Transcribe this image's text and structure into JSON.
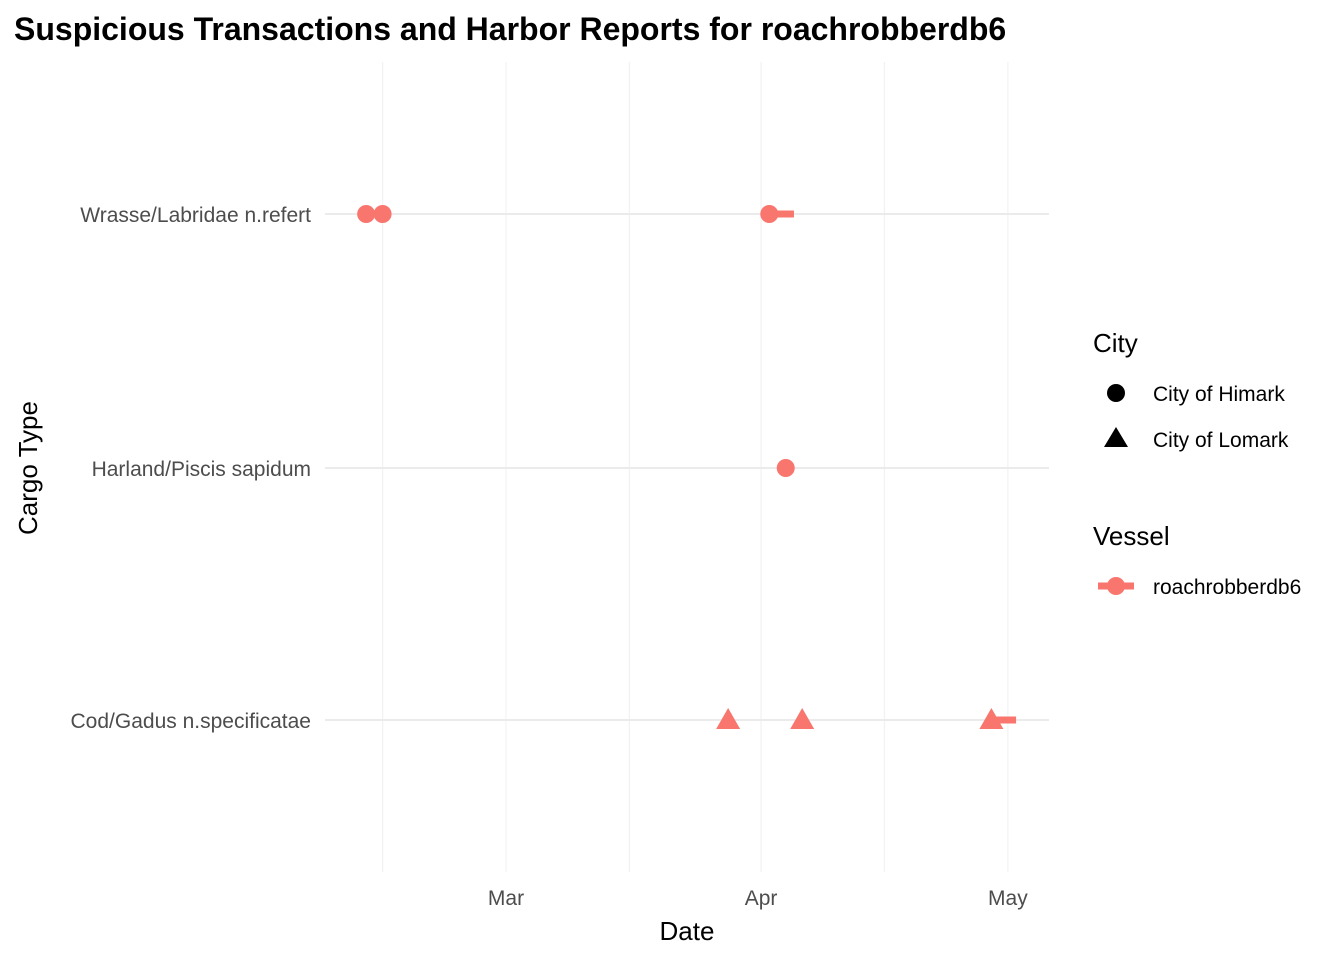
{
  "chart_data": {
    "type": "scatter",
    "title": "Suspicious Transactions and Harbor Reports for roachrobberdb6",
    "xlabel": "Date",
    "ylabel": "Cargo Type",
    "x_axis": {
      "type": "date",
      "range": [
        "2035-02-07",
        "2035-05-06"
      ],
      "ticks": [
        {
          "date": "2035-03-01",
          "label": "Mar"
        },
        {
          "date": "2035-04-01",
          "label": "Apr"
        },
        {
          "date": "2035-05-01",
          "label": "May"
        }
      ],
      "minor_gridlines": [
        "2035-02-14",
        "2035-03-16",
        "2035-04-16"
      ]
    },
    "categories": [
      "Cod/Gadus n.specificatae",
      "Harland/Piscis sapidum",
      "Wrasse/Labridae n.refert"
    ],
    "grid": true,
    "points": [
      {
        "date": "2035-02-12",
        "category": "Wrasse/Labridae n.refert",
        "city": "City of Himark",
        "vessel": "roachrobberdb6"
      },
      {
        "date": "2035-02-14",
        "category": "Wrasse/Labridae n.refert",
        "city": "City of Himark",
        "vessel": "roachrobberdb6"
      },
      {
        "date": "2035-04-02",
        "category": "Wrasse/Labridae n.refert",
        "city": "City of Himark",
        "vessel": "roachrobberdb6"
      },
      {
        "date": "2035-04-04",
        "category": "Harland/Piscis sapidum",
        "city": "City of Himark",
        "vessel": "roachrobberdb6"
      },
      {
        "date": "2035-03-28",
        "category": "Cod/Gadus n.specificatae",
        "city": "City of Lomark",
        "vessel": "roachrobberdb6"
      },
      {
        "date": "2035-04-06",
        "category": "Cod/Gadus n.specificatae",
        "city": "City of Lomark",
        "vessel": "roachrobberdb6"
      },
      {
        "date": "2035-04-29",
        "category": "Cod/Gadus n.specificatae",
        "city": "City of Lomark",
        "vessel": "roachrobberdb6"
      }
    ],
    "segments": [
      {
        "start": "2035-04-02",
        "end": "2035-04-05",
        "category": "Wrasse/Labridae n.refert",
        "vessel": "roachrobberdb6"
      },
      {
        "start": "2035-04-29",
        "end": "2035-05-02",
        "category": "Cod/Gadus n.specificatae",
        "vessel": "roachrobberdb6"
      }
    ],
    "legend": {
      "placement": "right",
      "city": {
        "title": "City",
        "entries": [
          {
            "label": "City of Himark",
            "shape": "circle"
          },
          {
            "label": "City of Lomark",
            "shape": "triangle"
          }
        ]
      },
      "vessel": {
        "title": "Vessel",
        "entries": [
          {
            "label": "roachrobberdb6",
            "color": "#f8766d"
          }
        ]
      }
    },
    "colors": {
      "series": "#f8766d",
      "grid_major": "#ebebeb",
      "grid_minor": "#f2f2f2"
    }
  }
}
